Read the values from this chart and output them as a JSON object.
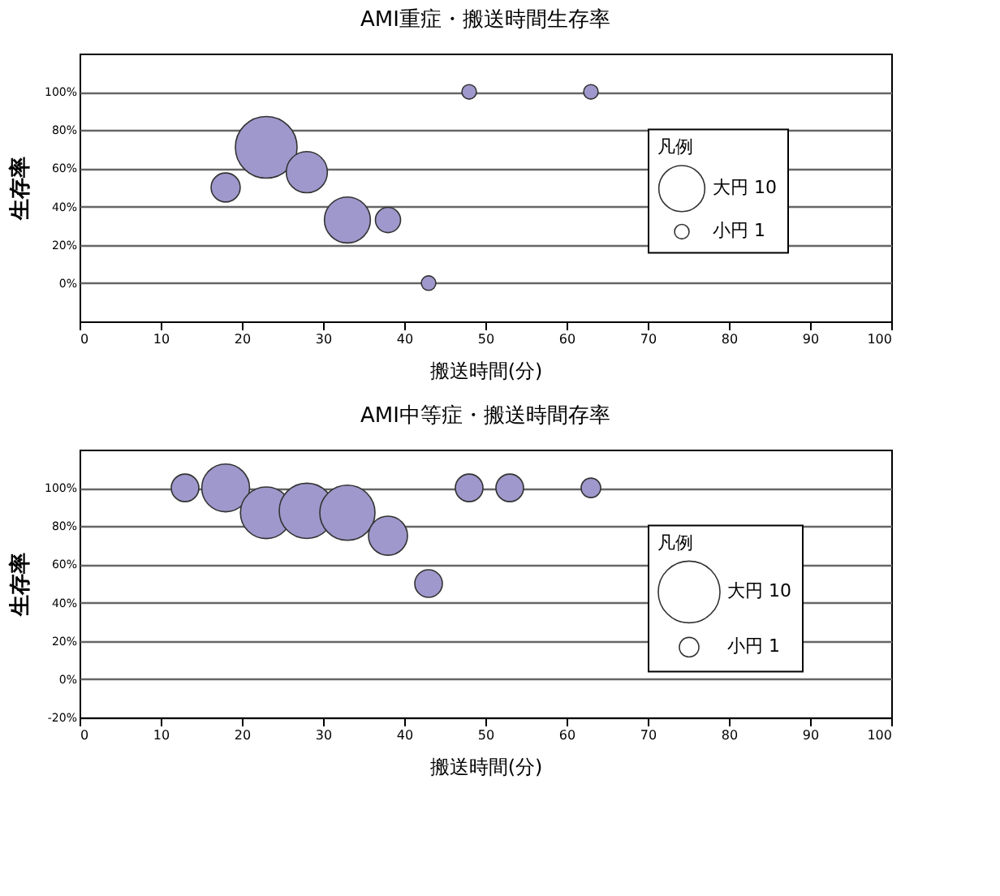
{
  "chart_data": [
    {
      "type": "bubble",
      "title": "AMI重症・搬送時間生存率",
      "xlabel": "搬送時間(分)",
      "ylabel": "生存率",
      "xlim": [
        0,
        100
      ],
      "xticks": [
        0,
        10,
        20,
        30,
        40,
        50,
        60,
        70,
        80,
        90,
        100
      ],
      "ylim": [
        -20,
        120
      ],
      "yticks": [
        {
          "value": 0,
          "label": "0%"
        },
        {
          "value": 20,
          "label": "20%"
        },
        {
          "value": 40,
          "label": "40%"
        },
        {
          "value": 60,
          "label": "60%"
        },
        {
          "value": 80,
          "label": "80%"
        },
        {
          "value": 100,
          "label": "100%"
        }
      ],
      "grid": "y",
      "legend_title": "凡例",
      "series": [
        {
          "color": "#9e98cc",
          "x": [
            18,
            23,
            28,
            33,
            38,
            43,
            48,
            63
          ],
          "values": [
            50,
            71,
            58,
            33,
            33,
            0,
            100,
            100
          ],
          "sizes": [
            4,
            18,
            8,
            10,
            3,
            1,
            1,
            1
          ]
        }
      ],
      "size_legend": [
        {
          "value": 10,
          "label": "大円 10"
        },
        {
          "value": 1,
          "label": "小円 1"
        }
      ]
    },
    {
      "type": "bubble",
      "title": "AMI中等症・搬送時間存率",
      "xlabel": "搬送時間(分)",
      "ylabel": "生存率",
      "xlim": [
        0,
        100
      ],
      "xticks": [
        0,
        10,
        20,
        30,
        40,
        50,
        60,
        70,
        80,
        90,
        100
      ],
      "ylim": [
        -20,
        120
      ],
      "yticks": [
        {
          "value": -20,
          "label": "-20%"
        },
        {
          "value": 0,
          "label": "0%"
        },
        {
          "value": 20,
          "label": "20%"
        },
        {
          "value": 40,
          "label": "40%"
        },
        {
          "value": 60,
          "label": "60%"
        },
        {
          "value": 80,
          "label": "80%"
        },
        {
          "value": 100,
          "label": "100%"
        }
      ],
      "grid": "y",
      "legend_title": "凡例",
      "series": [
        {
          "color": "#9e98cc",
          "x": [
            13,
            18,
            23,
            28,
            33,
            38,
            43,
            48,
            53,
            63
          ],
          "values": [
            100,
            100,
            87,
            88,
            87,
            75,
            50,
            100,
            100,
            100
          ],
          "sizes": [
            2,
            6,
            7,
            8,
            8,
            4,
            2,
            2,
            2,
            1
          ]
        }
      ],
      "size_legend": [
        {
          "value": 10,
          "label": "大円 10"
        },
        {
          "value": 1,
          "label": "小円 1"
        }
      ]
    }
  ]
}
